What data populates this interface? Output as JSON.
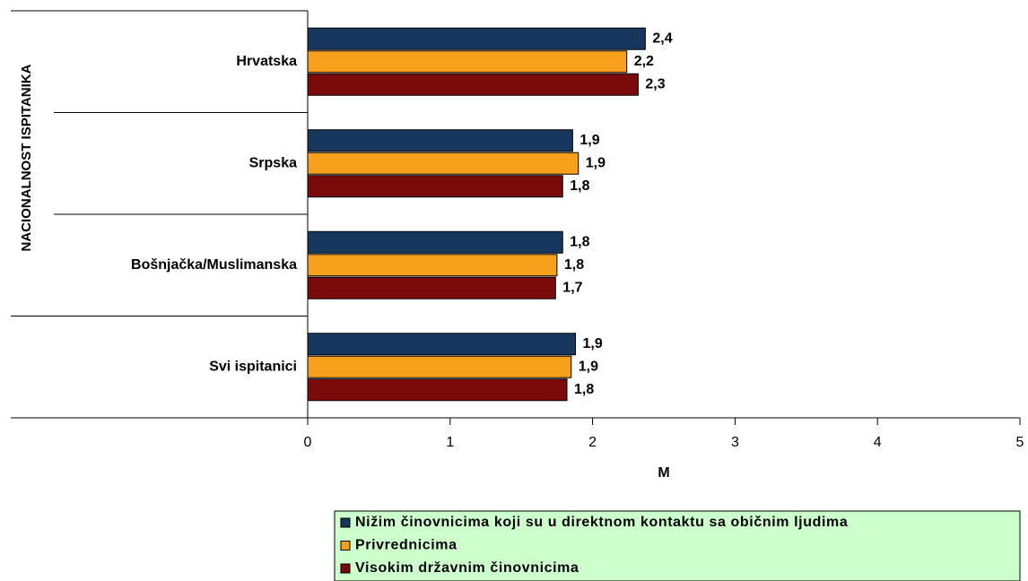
{
  "chart_data": {
    "type": "bar",
    "orientation": "horizontal",
    "y_label": "NACIONALNOST ISPITANIKA",
    "x_label": "M",
    "categories": [
      "Hrvatska",
      "Srpska",
      "Bošnjačka/Muslimanska",
      "Svi ispitanici"
    ],
    "series": [
      {
        "name": "Nižim činovnicima koji su u direktnom kontaktu sa običnim ljudima",
        "color": "#17375e",
        "values": [
          2.37,
          1.86,
          1.79,
          1.88
        ],
        "value_labels": [
          "2,4",
          "1,9",
          "1,8",
          "1,9"
        ]
      },
      {
        "name": "Privrednicima",
        "color": "#f7a01b",
        "values": [
          2.24,
          1.9,
          1.75,
          1.85
        ],
        "value_labels": [
          "2,2",
          "1,9",
          "1,8",
          "1,9"
        ]
      },
      {
        "name": "Visokim državnim činovnicima",
        "color": "#7b0a0a",
        "values": [
          2.32,
          1.79,
          1.74,
          1.82
        ],
        "value_labels": [
          "2,3",
          "1,8",
          "1,7",
          "1,8"
        ]
      }
    ],
    "xlim": [
      0,
      5
    ],
    "xticks": [
      0,
      1,
      2,
      3,
      4,
      5
    ],
    "legend": "bottom-right"
  }
}
